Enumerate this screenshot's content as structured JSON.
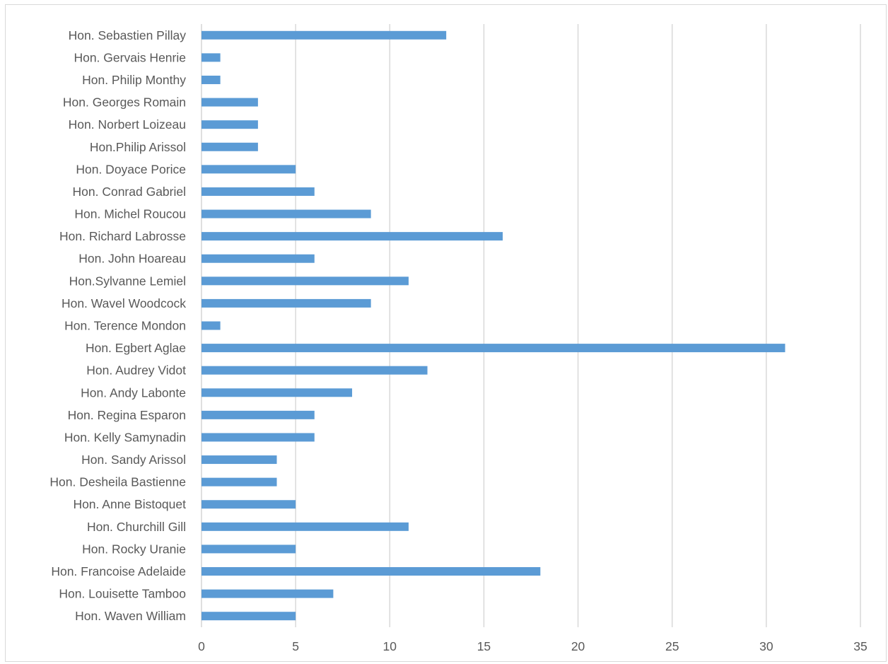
{
  "chart_data": {
    "type": "bar",
    "orientation": "horizontal",
    "categories": [
      "Hon. Sebastien Pillay",
      "Hon. Gervais Henrie",
      "Hon. Philip Monthy",
      "Hon. Georges Romain",
      "Hon. Norbert Loizeau",
      "Hon.Philip Arissol",
      "Hon. Doyace Porice",
      "Hon. Conrad Gabriel",
      "Hon. Michel Roucou",
      "Hon. Richard Labrosse",
      "Hon. John Hoareau",
      "Hon.Sylvanne Lemiel",
      "Hon. Wavel Woodcock",
      "Hon. Terence Mondon",
      "Hon. Egbert Aglae",
      "Hon. Audrey Vidot",
      "Hon. Andy Labonte",
      "Hon. Regina Esparon",
      "Hon. Kelly Samynadin",
      "Hon. Sandy Arissol",
      "Hon. Desheila Bastienne",
      "Hon. Anne Bistoquet",
      "Hon. Churchill Gill",
      "Hon. Rocky Uranie",
      "Hon. Francoise Adelaide",
      "Hon. Louisette Tamboo",
      "Hon. Waven William"
    ],
    "values": [
      13,
      1,
      1,
      3,
      3,
      3,
      5,
      6,
      9,
      16,
      6,
      11,
      9,
      1,
      31,
      12,
      8,
      6,
      6,
      4,
      4,
      5,
      11,
      5,
      18,
      7,
      5
    ],
    "xlim": [
      0,
      35
    ],
    "xticks": [
      "0",
      "5",
      "10",
      "15",
      "20",
      "25",
      "30",
      "35"
    ],
    "grid": true,
    "bar_color": "#5b9bd5"
  }
}
